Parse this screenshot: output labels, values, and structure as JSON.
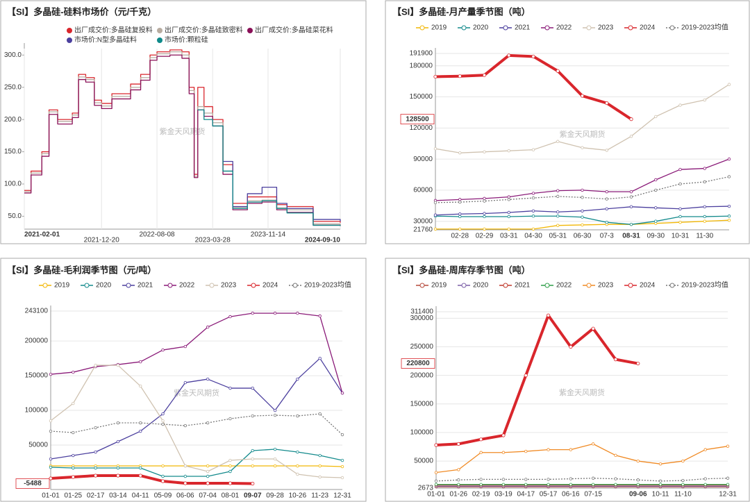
{
  "chart_data": [
    {
      "type": "line",
      "title": "【SI】多晶硅-硅料市场价（元/千克）",
      "watermark": "紫金天风期货",
      "step": true,
      "grid": "x",
      "x": [
        "2021-02-01",
        "2021-03-01",
        "2021-04-15",
        "2021-05-15",
        "2021-06-20",
        "2021-08-20",
        "2021-09-15",
        "2021-10-15",
        "2021-11-20",
        "2021-12-20",
        "2022-02-01",
        "2022-04-20",
        "2022-06-01",
        "2022-07-10",
        "2022-08-08",
        "2022-10-01",
        "2022-11-20",
        "2022-12-20",
        "2023-01-10",
        "2023-01-25",
        "2023-02-20",
        "2023-03-28",
        "2023-05-10",
        "2023-06-20",
        "2023-08-20",
        "2023-10-20",
        "2023-12-20",
        "2024-02-01",
        "2024-05-20",
        "2024-09-10"
      ],
      "xlim": [
        "2021-02-01",
        "2024-09-10"
      ],
      "xticks": [
        "2021-02-01",
        "2021-12-20",
        "2022-08-08",
        "2023-03-28",
        "2023-11-14",
        "2024-09-10"
      ],
      "ylim": [
        30,
        310
      ],
      "yticks": [
        {
          "value": 50,
          "label": "50.0"
        },
        {
          "value": 100,
          "label": "100.0"
        },
        {
          "value": 150,
          "label": "150.0"
        },
        {
          "value": 200,
          "label": "200.0"
        },
        {
          "value": 250,
          "label": "250.0"
        },
        {
          "value": 300,
          "label": "300.0"
        }
      ],
      "series": [
        {
          "name": "出厂成交价:多晶硅复投料",
          "color": "#d9262c",
          "values": [
            90,
            120,
            150,
            215,
            200,
            210,
            270,
            265,
            230,
            225,
            240,
            255,
            270,
            300,
            305,
            308,
            305,
            250,
            115,
            250,
            220,
            200,
            130,
            70,
            80,
            80,
            68,
            65,
            42,
            40
          ]
        },
        {
          "name": "出厂成交价:多晶硅致密料",
          "color": "#b8aca0",
          "values": [
            88,
            117,
            147,
            212,
            197,
            207,
            266,
            262,
            226,
            221,
            236,
            250,
            265,
            296,
            302,
            305,
            300,
            245,
            112,
            220,
            210,
            195,
            120,
            64,
            74,
            75,
            63,
            60,
            38,
            36
          ]
        },
        {
          "name": "出厂成交价:多晶硅菜花料",
          "color": "#8a1058",
          "values": [
            86,
            114,
            143,
            208,
            193,
            203,
            262,
            258,
            222,
            217,
            232,
            246,
            261,
            292,
            298,
            300,
            295,
            240,
            110,
            215,
            205,
            190,
            115,
            60,
            70,
            72,
            60,
            56,
            36,
            35
          ]
        },
        {
          "name": "市场价:N型多晶硅料",
          "color": "#4b3f9e",
          "values": [
            null,
            null,
            null,
            null,
            null,
            null,
            null,
            null,
            null,
            null,
            null,
            null,
            null,
            null,
            null,
            null,
            null,
            null,
            null,
            null,
            null,
            null,
            135,
            65,
            85,
            95,
            70,
            62,
            45,
            42
          ]
        },
        {
          "name": "市场价:颗粒硅",
          "color": "#0f8a8a",
          "values": [
            null,
            null,
            null,
            null,
            null,
            null,
            null,
            null,
            null,
            null,
            null,
            null,
            null,
            null,
            null,
            null,
            null,
            null,
            null,
            215,
            200,
            190,
            120,
            62,
            72,
            74,
            62,
            55,
            36,
            35
          ]
        }
      ]
    },
    {
      "type": "line",
      "title": "【SI】多晶硅-月产量季节图（吨）",
      "watermark": "紫金天风期货",
      "grid": "y",
      "markers": true,
      "categories": [
        null,
        "02-28",
        "02-29",
        "03-31",
        "04-30",
        "05-31",
        "06-30",
        "07-3",
        "08-31",
        "09-30",
        "10-31",
        "11-30",
        null
      ],
      "ylim": [
        21760,
        191900
      ],
      "yticks": [
        21760,
        30000,
        60000,
        90000,
        120000,
        150000,
        180000,
        191900
      ],
      "series": [
        {
          "name": "2019",
          "color": "#f2b705",
          "values": [
            22500,
            22500,
            22500,
            22500,
            22500,
            26000,
            26500,
            27000,
            27000,
            28000,
            29000,
            30000,
            31000
          ]
        },
        {
          "name": "2020",
          "color": "#138a8c",
          "values": [
            35000,
            34500,
            34500,
            34500,
            35000,
            35000,
            34000,
            29000,
            27000,
            30000,
            34500,
            34500,
            35000
          ]
        },
        {
          "name": "2021",
          "color": "#4b3f9e",
          "values": [
            36000,
            37000,
            37500,
            38500,
            40000,
            39000,
            40000,
            42000,
            44000,
            43000,
            42000,
            44000,
            44500
          ]
        },
        {
          "name": "2022",
          "color": "#8a1a78",
          "values": [
            50000,
            51000,
            52000,
            53500,
            57000,
            59500,
            60000,
            58500,
            58500,
            70000,
            80000,
            81000,
            90000
          ]
        },
        {
          "name": "2023",
          "color": "#cfc2b0",
          "values": [
            100000,
            96000,
            97000,
            98000,
            99000,
            107000,
            101000,
            98500,
            112000,
            131000,
            142000,
            147000,
            162000
          ]
        },
        {
          "name": "2024",
          "color": "#d9262c",
          "width": 4,
          "label_last": true,
          "values": [
            169500,
            170000,
            171000,
            190000,
            189000,
            175000,
            151000,
            144000,
            128500,
            null,
            null,
            null,
            null
          ]
        },
        {
          "name": "2019-2023均值",
          "color": "#777777",
          "dashed": true,
          "values": [
            48000,
            48500,
            49500,
            51000,
            52500,
            54000,
            53000,
            51500,
            53500,
            60000,
            66000,
            68000,
            73000
          ]
        }
      ]
    },
    {
      "type": "line",
      "title": "【SI】多晶硅-毛利润季节图（元/吨）",
      "watermark": "紫金天风期货",
      "grid": "y",
      "markers": true,
      "categories": [
        "01-01",
        "01-25",
        "02-17",
        "03-14",
        "04-11",
        "05-09",
        "06-06",
        "07-04",
        "08-01",
        "09-07",
        "09-28",
        "10-26",
        "11-23",
        "12-31"
      ],
      "ylim": [
        -14000,
        243100
      ],
      "yticks": [
        50000,
        100000,
        150000,
        200000,
        243100
      ],
      "series": [
        {
          "name": "2019",
          "color": "#f2b705",
          "values": [
            20000,
            20000,
            20000,
            20000,
            20000,
            20000,
            20000,
            20000,
            20000,
            20000,
            20000,
            20000,
            20000,
            19000
          ]
        },
        {
          "name": "2020",
          "color": "#138a8c",
          "values": [
            18000,
            17000,
            17000,
            17000,
            17000,
            5000,
            5000,
            5000,
            12000,
            42000,
            44000,
            40000,
            35000,
            28000
          ]
        },
        {
          "name": "2021",
          "color": "#4b3f9e",
          "values": [
            30000,
            35000,
            40000,
            55000,
            70000,
            95000,
            140000,
            145000,
            132000,
            132000,
            100000,
            145000,
            175000,
            125000
          ]
        },
        {
          "name": "2022",
          "color": "#8a1a78",
          "values": [
            152000,
            155000,
            163000,
            166000,
            170000,
            187000,
            192000,
            220000,
            235000,
            240000,
            240000,
            240000,
            236000,
            125000
          ]
        },
        {
          "name": "2023",
          "color": "#cfc2b0",
          "values": [
            85000,
            110000,
            165000,
            165000,
            135000,
            85000,
            20000,
            12000,
            28000,
            30000,
            30000,
            8000,
            4000,
            3000
          ]
        },
        {
          "name": "2024",
          "color": "#d9262c",
          "width": 4,
          "label_last": true,
          "values": [
            2000,
            4000,
            6000,
            6000,
            6000,
            -2000,
            -5000,
            -5000,
            -5000,
            -5488,
            null,
            null,
            null,
            null
          ]
        },
        {
          "name": "2019-2023均值",
          "color": "#777777",
          "dashed": true,
          "values": [
            70000,
            68000,
            75000,
            82000,
            82000,
            80000,
            78000,
            82000,
            88000,
            92000,
            93000,
            92000,
            95000,
            65000
          ]
        }
      ]
    },
    {
      "type": "line",
      "title": "【SI】多晶硅-周库存季节图（吨）",
      "watermark": "紫金天风期货",
      "grid": "y",
      "markers": true,
      "categories": [
        "01-01",
        "01-26",
        "02-19",
        "03-19",
        "04-17",
        "05-17",
        "06-16",
        "07-15",
        null,
        "09-06",
        "10-11",
        "11-10",
        null,
        "12-31"
      ],
      "ylim": [
        2673,
        311400
      ],
      "yticks": [
        2673,
        50000,
        100000,
        150000,
        200000,
        250000,
        300000,
        311400
      ],
      "series": [
        {
          "name": "2019",
          "color": "#b5483a",
          "values": [
            5000,
            5000,
            5000,
            5000,
            5000,
            5000,
            5000,
            5000,
            5000,
            5000,
            5000,
            5000,
            5000,
            5000
          ]
        },
        {
          "name": "2020",
          "color": "#7b5ea7",
          "values": [
            6000,
            6000,
            6000,
            6000,
            6000,
            6000,
            6000,
            6000,
            6000,
            6000,
            6000,
            6000,
            6000,
            6000
          ]
        },
        {
          "name": "2021",
          "color": "#c0392b",
          "values": [
            8000,
            8000,
            8000,
            8000,
            8000,
            8000,
            8000,
            8000,
            8000,
            8000,
            8000,
            8000,
            8000,
            8000
          ]
        },
        {
          "name": "2022",
          "color": "#2e9e48",
          "values": [
            9000,
            9000,
            9000,
            9000,
            9000,
            9000,
            9000,
            9000,
            9000,
            9000,
            9000,
            9000,
            9000,
            9000
          ]
        },
        {
          "name": "2023",
          "color": "#f08a24",
          "values": [
            30000,
            35000,
            65000,
            65000,
            67000,
            70000,
            70000,
            80000,
            60000,
            50000,
            45000,
            50000,
            70000,
            76000
          ]
        },
        {
          "name": "2024",
          "color": "#d9262c",
          "width": 4,
          "label_last": true,
          "values": [
            78000,
            80000,
            88000,
            95000,
            200000,
            305000,
            250000,
            282000,
            228000,
            220800,
            null,
            null,
            null,
            null
          ]
        },
        {
          "name": "2019-2023均值",
          "color": "#777777",
          "dashed": true,
          "values": [
            15000,
            17000,
            18000,
            18000,
            18000,
            18000,
            19000,
            20000,
            19000,
            17000,
            15000,
            16000,
            19000,
            20000
          ]
        }
      ]
    }
  ]
}
